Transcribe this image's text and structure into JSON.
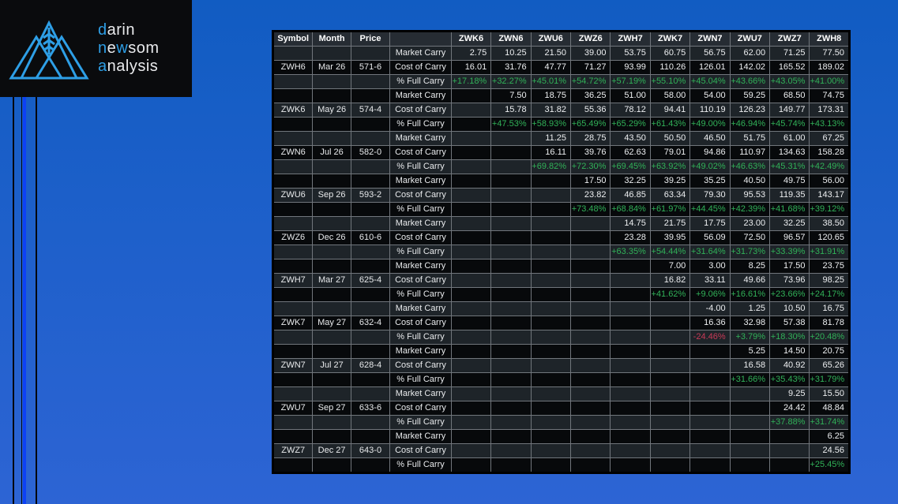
{
  "logo": {
    "lines": [
      [
        {
          "text": "d",
          "accent": true
        },
        {
          "text": "arin",
          "accent": false
        }
      ],
      [
        {
          "text": "n",
          "accent": true
        },
        {
          "text": "e",
          "accent": false
        },
        {
          "text": "w",
          "accent": true
        },
        {
          "text": "som",
          "accent": false
        }
      ],
      [
        {
          "text": "a",
          "accent": true
        },
        {
          "text": "nalysis",
          "accent": false
        }
      ]
    ],
    "icon": "mountains-wheat-icon"
  },
  "colors": {
    "logo_accent_blue": "#2E9FE6",
    "background_top": "#115CC2",
    "background_bottom": "#2D64D4",
    "stripe_bright_blue": "#0D41F5",
    "positive_green": "#31B158",
    "negative_red": "#C93A57",
    "row_slate": "#1E2429",
    "row_black": "#07090B",
    "header_bg": "#262C33"
  },
  "table": {
    "headers": [
      "Symbol",
      "Month",
      "Price",
      "",
      "ZWK6",
      "ZWN6",
      "ZWU6",
      "ZWZ6",
      "ZWH7",
      "ZWK7",
      "ZWN7",
      "ZWU7",
      "ZWZ7",
      "ZWH8"
    ],
    "row_labels": {
      "market": "Market Carry",
      "cost": "Cost of Carry",
      "pct": "% Full Carry"
    },
    "groups": [
      {
        "symbol": "ZWH6",
        "month": "Mar 26",
        "price": "571-6",
        "market_carry": [
          "2.75",
          "10.25",
          "21.50",
          "39.00",
          "53.75",
          "60.75",
          "56.75",
          "62.00",
          "71.25",
          "77.50"
        ],
        "cost_of_carry": [
          "16.01",
          "31.76",
          "47.77",
          "71.27",
          "93.99",
          "110.26",
          "126.01",
          "142.02",
          "165.52",
          "189.02"
        ],
        "pct_full_carry": [
          "+17.18%",
          "+32.27%",
          "+45.01%",
          "+54.72%",
          "+57.19%",
          "+55.10%",
          "+45.04%",
          "+43.66%",
          "+43.05%",
          "+41.00%"
        ]
      },
      {
        "symbol": "ZWK6",
        "month": "May 26",
        "price": "574-4",
        "market_carry": [
          "",
          "7.50",
          "18.75",
          "36.25",
          "51.00",
          "58.00",
          "54.00",
          "59.25",
          "68.50",
          "74.75"
        ],
        "cost_of_carry": [
          "",
          "15.78",
          "31.82",
          "55.36",
          "78.12",
          "94.41",
          "110.19",
          "126.23",
          "149.77",
          "173.31"
        ],
        "pct_full_carry": [
          "",
          "+47.53%",
          "+58.93%",
          "+65.49%",
          "+65.29%",
          "+61.43%",
          "+49.00%",
          "+46.94%",
          "+45.74%",
          "+43.13%"
        ]
      },
      {
        "symbol": "ZWN6",
        "month": "Jul 26",
        "price": "582-0",
        "market_carry": [
          "",
          "",
          "11.25",
          "28.75",
          "43.50",
          "50.50",
          "46.50",
          "51.75",
          "61.00",
          "67.25"
        ],
        "cost_of_carry": [
          "",
          "",
          "16.11",
          "39.76",
          "62.63",
          "79.01",
          "94.86",
          "110.97",
          "134.63",
          "158.28"
        ],
        "pct_full_carry": [
          "",
          "",
          "+69.82%",
          "+72.30%",
          "+69.45%",
          "+63.92%",
          "+49.02%",
          "+46.63%",
          "+45.31%",
          "+42.49%"
        ]
      },
      {
        "symbol": "ZWU6",
        "month": "Sep 26",
        "price": "593-2",
        "market_carry": [
          "",
          "",
          "",
          "17.50",
          "32.25",
          "39.25",
          "35.25",
          "40.50",
          "49.75",
          "56.00"
        ],
        "cost_of_carry": [
          "",
          "",
          "",
          "23.82",
          "46.85",
          "63.34",
          "79.30",
          "95.53",
          "119.35",
          "143.17"
        ],
        "pct_full_carry": [
          "",
          "",
          "",
          "+73.48%",
          "+68.84%",
          "+61.97%",
          "+44.45%",
          "+42.39%",
          "+41.68%",
          "+39.12%"
        ]
      },
      {
        "symbol": "ZWZ6",
        "month": "Dec 26",
        "price": "610-6",
        "market_carry": [
          "",
          "",
          "",
          "",
          "14.75",
          "21.75",
          "17.75",
          "23.00",
          "32.25",
          "38.50"
        ],
        "cost_of_carry": [
          "",
          "",
          "",
          "",
          "23.28",
          "39.95",
          "56.09",
          "72.50",
          "96.57",
          "120.65"
        ],
        "pct_full_carry": [
          "",
          "",
          "",
          "",
          "+63.35%",
          "+54.44%",
          "+31.64%",
          "+31.73%",
          "+33.39%",
          "+31.91%"
        ]
      },
      {
        "symbol": "ZWH7",
        "month": "Mar 27",
        "price": "625-4",
        "market_carry": [
          "",
          "",
          "",
          "",
          "",
          "7.00",
          "3.00",
          "8.25",
          "17.50",
          "23.75"
        ],
        "cost_of_carry": [
          "",
          "",
          "",
          "",
          "",
          "16.82",
          "33.11",
          "49.66",
          "73.96",
          "98.25"
        ],
        "pct_full_carry": [
          "",
          "",
          "",
          "",
          "",
          "+41.62%",
          "+9.06%",
          "+16.61%",
          "+23.66%",
          "+24.17%"
        ]
      },
      {
        "symbol": "ZWK7",
        "month": "May 27",
        "price": "632-4",
        "market_carry": [
          "",
          "",
          "",
          "",
          "",
          "",
          "-4.00",
          "1.25",
          "10.50",
          "16.75"
        ],
        "cost_of_carry": [
          "",
          "",
          "",
          "",
          "",
          "",
          "16.36",
          "32.98",
          "57.38",
          "81.78"
        ],
        "pct_full_carry": [
          "",
          "",
          "",
          "",
          "",
          "",
          "-24.46%",
          "+3.79%",
          "+18.30%",
          "+20.48%"
        ]
      },
      {
        "symbol": "ZWN7",
        "month": "Jul 27",
        "price": "628-4",
        "market_carry": [
          "",
          "",
          "",
          "",
          "",
          "",
          "",
          "5.25",
          "14.50",
          "20.75"
        ],
        "cost_of_carry": [
          "",
          "",
          "",
          "",
          "",
          "",
          "",
          "16.58",
          "40.92",
          "65.26"
        ],
        "pct_full_carry": [
          "",
          "",
          "",
          "",
          "",
          "",
          "",
          "+31.66%",
          "+35.43%",
          "+31.79%"
        ]
      },
      {
        "symbol": "ZWU7",
        "month": "Sep 27",
        "price": "633-6",
        "market_carry": [
          "",
          "",
          "",
          "",
          "",
          "",
          "",
          "",
          "9.25",
          "15.50"
        ],
        "cost_of_carry": [
          "",
          "",
          "",
          "",
          "",
          "",
          "",
          "",
          "24.42",
          "48.84"
        ],
        "pct_full_carry": [
          "",
          "",
          "",
          "",
          "",
          "",
          "",
          "",
          "+37.88%",
          "+31.74%"
        ]
      },
      {
        "symbol": "ZWZ7",
        "month": "Dec 27",
        "price": "643-0",
        "market_carry": [
          "",
          "",
          "",
          "",
          "",
          "",
          "",
          "",
          "",
          "6.25"
        ],
        "cost_of_carry": [
          "",
          "",
          "",
          "",
          "",
          "",
          "",
          "",
          "",
          "24.56"
        ],
        "pct_full_carry": [
          "",
          "",
          "",
          "",
          "",
          "",
          "",
          "",
          "",
          "+25.45%"
        ]
      }
    ]
  }
}
